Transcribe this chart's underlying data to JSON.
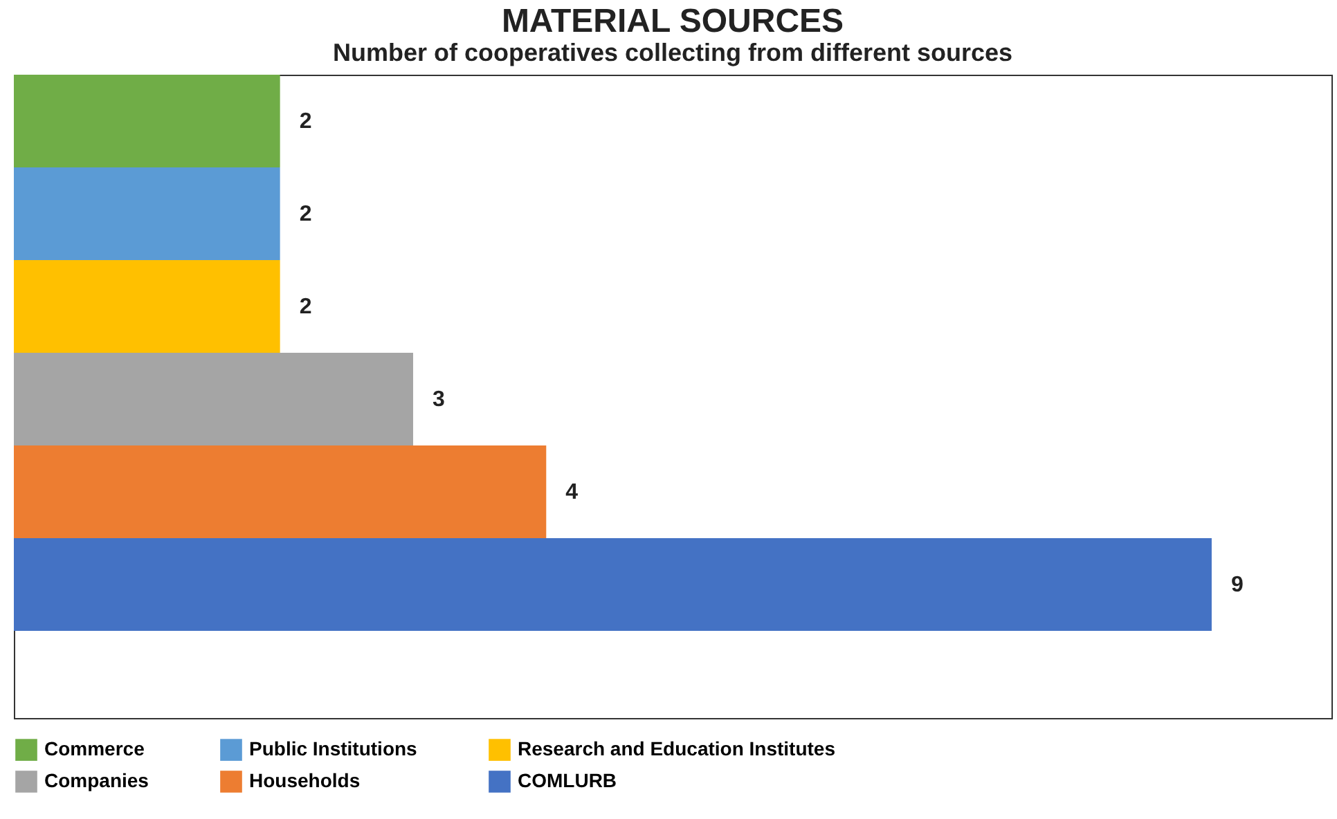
{
  "chart_data": {
    "type": "bar",
    "orientation": "horizontal",
    "stacked": true,
    "title": "MATERIAL SOURCES",
    "subtitle": "Number of cooperatives collecting from different sources",
    "categories": [
      null,
      null,
      null,
      null,
      null,
      null
    ],
    "series": [
      {
        "name": "Commerce",
        "color": "#70ad47",
        "values": [
          2,
          null,
          null,
          null,
          null,
          null
        ]
      },
      {
        "name": "Public Institutions",
        "color": "#5b9bd5",
        "values": [
          null,
          2,
          null,
          null,
          null,
          null
        ]
      },
      {
        "name": "Research and Education Institutes",
        "color": "#ffc000",
        "values": [
          null,
          null,
          2,
          null,
          null,
          null
        ]
      },
      {
        "name": "Companies",
        "color": "#a5a5a5",
        "values": [
          null,
          null,
          null,
          3,
          null,
          null
        ]
      },
      {
        "name": "Households",
        "color": "#ed7d31",
        "values": [
          null,
          null,
          null,
          null,
          4,
          null
        ]
      },
      {
        "name": "COMLURB",
        "color": "#4472c4",
        "values": [
          null,
          null,
          null,
          null,
          null,
          9
        ]
      }
    ],
    "data_labels": true,
    "legend": "bottom"
  }
}
